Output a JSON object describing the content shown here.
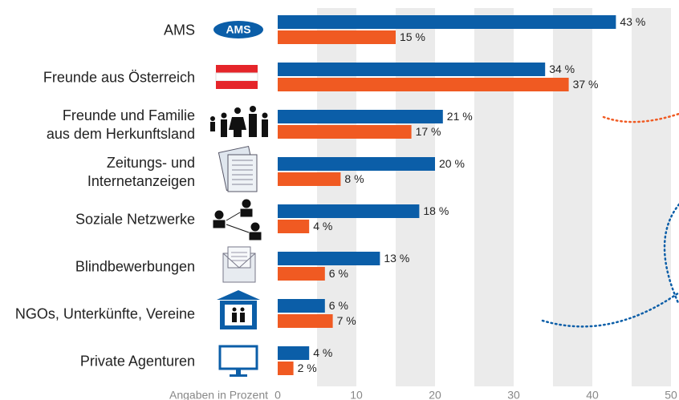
{
  "chart_data": {
    "type": "hbar",
    "categories": [
      "AMS",
      "Freunde aus Österreich",
      "Freunde und Familie\naus dem Herkunftsland",
      "Zeitungs- und\nInternetanzeigen",
      "Soziale Netzwerke",
      "Blindbewerbungen",
      "NGOs, Unterkünfte, Vereine",
      "Private Agenturen"
    ],
    "series": [
      {
        "color": "#0b5ea8",
        "values": [
          43,
          34,
          21,
          20,
          18,
          13,
          6,
          4
        ],
        "value_labels": [
          "43 %",
          "34 %",
          "21 %",
          "20 %",
          "18 %",
          "13 %",
          "6 %",
          "4 %"
        ]
      },
      {
        "color": "#f05a22",
        "values": [
          15,
          37,
          17,
          8,
          4,
          6,
          7,
          2
        ],
        "value_labels": [
          "15 %",
          "37 %",
          "17 %",
          "8 %",
          "4 %",
          "6 %",
          "7 %",
          "2 %"
        ]
      }
    ],
    "xlabel": "Angaben in Prozent",
    "xlim": [
      0,
      50
    ],
    "xticks": [
      0,
      10,
      20,
      30,
      40,
      50
    ],
    "logo": "AMS",
    "stripes": true
  }
}
